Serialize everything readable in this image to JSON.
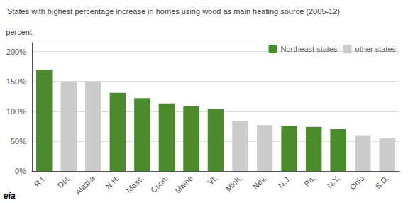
{
  "chart_data": {
    "type": "bar",
    "title": "States with highest percentage increase in homes using wood as main heating source (2005-12)",
    "ylabel": "percent",
    "categories": [
      "R.I.",
      "Del.",
      "Alaska",
      "N.H.",
      "Mass.",
      "Conn.",
      "Maine",
      "Vt.",
      "Mich.",
      "Nev.",
      "N.J.",
      "Pa.",
      "N.Y.",
      "Ohio",
      "S.D."
    ],
    "series": [
      {
        "name": "Northeast states",
        "color": "#4a8c2a",
        "values": [
          170,
          null,
          null,
          131,
          122,
          113,
          109,
          104,
          null,
          null,
          76,
          74,
          70,
          null,
          null
        ]
      },
      {
        "name": "other states",
        "color": "#cccccc",
        "values": [
          null,
          150,
          150,
          null,
          null,
          null,
          null,
          null,
          84,
          77,
          null,
          null,
          null,
          60,
          55
        ]
      }
    ],
    "ylim": [
      0,
      215
    ],
    "yticks": [
      {
        "value": 0,
        "label": "0%"
      },
      {
        "value": 50,
        "label": "50%"
      },
      {
        "value": 100,
        "label": "100%"
      },
      {
        "value": 150,
        "label": "150%"
      },
      {
        "value": 200,
        "label": "200%"
      }
    ],
    "grid": true,
    "legend": "upper right",
    "annotations": [
      "eia"
    ]
  }
}
